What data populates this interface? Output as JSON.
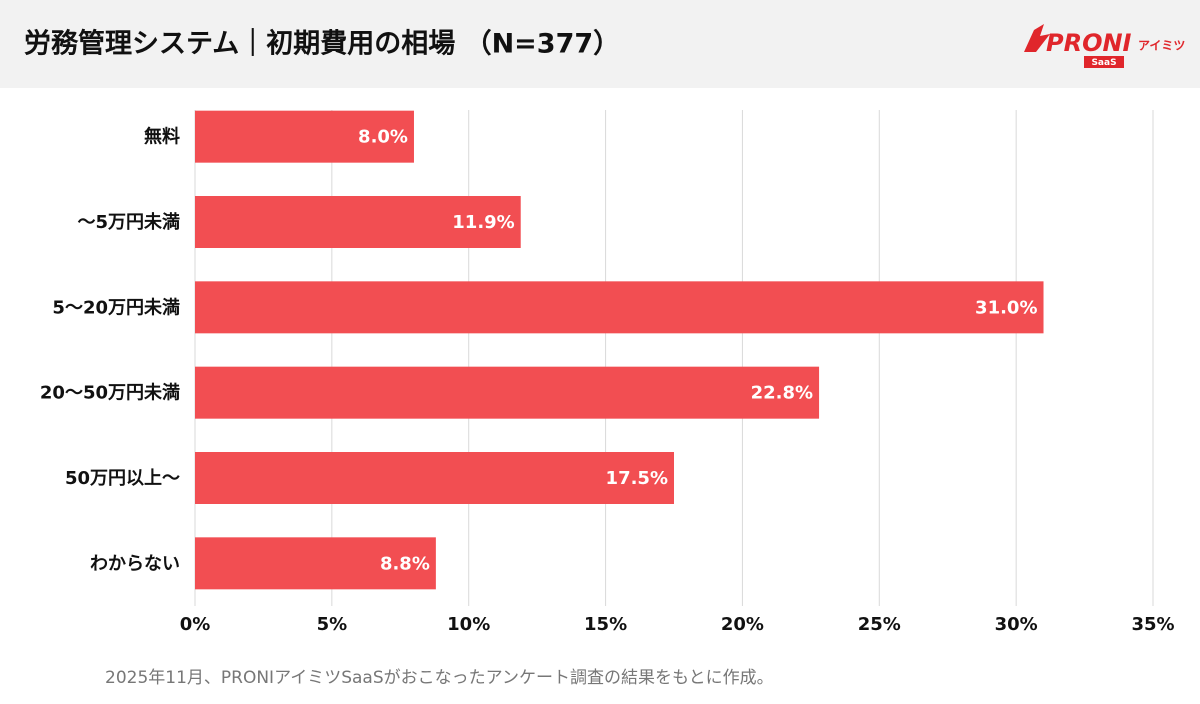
{
  "chart_data": {
    "type": "bar",
    "orientation": "horizontal",
    "title": "労務管理システム｜初期費用の相場 （N=377）",
    "categories": [
      "無料",
      "〜5万円未満",
      "5〜20万円未満",
      "20〜50万円未満",
      "50万円以上〜",
      "わからない"
    ],
    "values": [
      8.0,
      11.9,
      31.0,
      22.8,
      17.5,
      8.8
    ],
    "value_labels": [
      "8.0%",
      "11.9%",
      "31.0%",
      "22.8%",
      "17.5%",
      "8.8%"
    ],
    "color": "#f24e52",
    "xlim": [
      0,
      35
    ],
    "xticks": [
      {
        "value": 0,
        "label": "0%"
      },
      {
        "value": 5,
        "label": "5%"
      },
      {
        "value": 10,
        "label": "10%"
      },
      {
        "value": 15,
        "label": "15%"
      },
      {
        "value": 20,
        "label": "20%"
      },
      {
        "value": 25,
        "label": "25%"
      },
      {
        "value": 30,
        "label": "30%"
      },
      {
        "value": 35,
        "label": "35%"
      }
    ],
    "grid": true,
    "note": "2025年11月、PRONIアイミツSaaSがおこなったアンケート調査の結果をもとに作成。",
    "logo": {
      "name": "PRONI",
      "sub": "アイミツ",
      "tag": "SaaS"
    }
  }
}
